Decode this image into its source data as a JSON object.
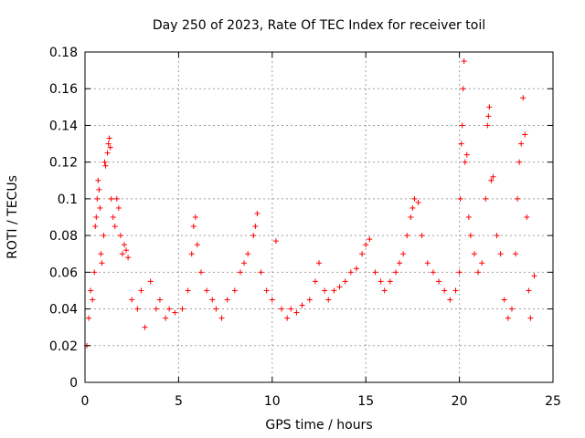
{
  "chart_data": {
    "type": "scatter",
    "title": "Day 250 of 2023, Rate Of TEC Index for receiver toil",
    "xlabel": "GPS time / hours",
    "ylabel": "ROTI / TECUs",
    "xlim": [
      0,
      25
    ],
    "ylim": [
      0,
      0.18
    ],
    "x_ticks": [
      0,
      5,
      10,
      15,
      20,
      25
    ],
    "x_tick_labels": [
      "0",
      "5",
      "10",
      "15",
      "20",
      "25"
    ],
    "y_ticks": [
      0,
      0.02,
      0.04,
      0.06,
      0.08,
      0.1,
      0.12,
      0.14,
      0.16,
      0.18
    ],
    "y_tick_labels": [
      "0",
      "0.02",
      "0.04",
      "0.06",
      "0.08",
      "0.1",
      "0.12",
      "0.14",
      "0.16",
      "0.18"
    ],
    "grid": true,
    "marker": "plus",
    "color": "#ff0000",
    "series": [
      {
        "points": [
          [
            0.1,
            0.02
          ],
          [
            0.2,
            0.035
          ],
          [
            0.3,
            0.05
          ],
          [
            0.4,
            0.045
          ],
          [
            0.5,
            0.06
          ],
          [
            0.55,
            0.085
          ],
          [
            0.6,
            0.09
          ],
          [
            0.65,
            0.1
          ],
          [
            0.7,
            0.11
          ],
          [
            0.75,
            0.105
          ],
          [
            0.8,
            0.095
          ],
          [
            0.85,
            0.07
          ],
          [
            0.9,
            0.065
          ],
          [
            1.0,
            0.08
          ],
          [
            1.05,
            0.12
          ],
          [
            1.1,
            0.118
          ],
          [
            1.2,
            0.125
          ],
          [
            1.25,
            0.13
          ],
          [
            1.3,
            0.133
          ],
          [
            1.35,
            0.128
          ],
          [
            1.4,
            0.1
          ],
          [
            1.5,
            0.09
          ],
          [
            1.6,
            0.085
          ],
          [
            1.7,
            0.1
          ],
          [
            1.8,
            0.095
          ],
          [
            1.9,
            0.08
          ],
          [
            2.0,
            0.07
          ],
          [
            2.1,
            0.075
          ],
          [
            2.2,
            0.072
          ],
          [
            2.3,
            0.068
          ],
          [
            2.5,
            0.045
          ],
          [
            2.8,
            0.04
          ],
          [
            3.0,
            0.05
          ],
          [
            3.2,
            0.03
          ],
          [
            3.5,
            0.055
          ],
          [
            3.8,
            0.04
          ],
          [
            4.0,
            0.045
          ],
          [
            4.3,
            0.035
          ],
          [
            4.5,
            0.04
          ],
          [
            4.8,
            0.038
          ],
          [
            5.2,
            0.04
          ],
          [
            5.5,
            0.05
          ],
          [
            5.7,
            0.07
          ],
          [
            5.8,
            0.085
          ],
          [
            5.9,
            0.09
          ],
          [
            6.0,
            0.075
          ],
          [
            6.2,
            0.06
          ],
          [
            6.5,
            0.05
          ],
          [
            6.8,
            0.045
          ],
          [
            7.0,
            0.04
          ],
          [
            7.3,
            0.035
          ],
          [
            7.6,
            0.045
          ],
          [
            8.0,
            0.05
          ],
          [
            8.3,
            0.06
          ],
          [
            8.5,
            0.065
          ],
          [
            8.7,
            0.07
          ],
          [
            9.0,
            0.08
          ],
          [
            9.1,
            0.085
          ],
          [
            9.2,
            0.092
          ],
          [
            9.4,
            0.06
          ],
          [
            9.7,
            0.05
          ],
          [
            10.0,
            0.045
          ],
          [
            10.2,
            0.077
          ],
          [
            10.5,
            0.04
          ],
          [
            10.8,
            0.035
          ],
          [
            11.0,
            0.04
          ],
          [
            11.3,
            0.038
          ],
          [
            11.6,
            0.042
          ],
          [
            12.0,
            0.045
          ],
          [
            12.3,
            0.055
          ],
          [
            12.5,
            0.065
          ],
          [
            12.8,
            0.05
          ],
          [
            13.0,
            0.045
          ],
          [
            13.3,
            0.05
          ],
          [
            13.6,
            0.052
          ],
          [
            13.9,
            0.055
          ],
          [
            14.2,
            0.06
          ],
          [
            14.5,
            0.062
          ],
          [
            14.8,
            0.07
          ],
          [
            15.0,
            0.075
          ],
          [
            15.2,
            0.078
          ],
          [
            15.5,
            0.06
          ],
          [
            15.8,
            0.055
          ],
          [
            16.0,
            0.05
          ],
          [
            16.3,
            0.055
          ],
          [
            16.6,
            0.06
          ],
          [
            16.8,
            0.065
          ],
          [
            17.0,
            0.07
          ],
          [
            17.2,
            0.08
          ],
          [
            17.4,
            0.09
          ],
          [
            17.5,
            0.095
          ],
          [
            17.6,
            0.1
          ],
          [
            17.8,
            0.098
          ],
          [
            18.0,
            0.08
          ],
          [
            18.3,
            0.065
          ],
          [
            18.6,
            0.06
          ],
          [
            18.9,
            0.055
          ],
          [
            19.2,
            0.05
          ],
          [
            19.5,
            0.045
          ],
          [
            19.8,
            0.05
          ],
          [
            20.0,
            0.06
          ],
          [
            20.05,
            0.1
          ],
          [
            20.1,
            0.13
          ],
          [
            20.15,
            0.14
          ],
          [
            20.2,
            0.16
          ],
          [
            20.25,
            0.175
          ],
          [
            20.3,
            0.12
          ],
          [
            20.4,
            0.124
          ],
          [
            20.5,
            0.09
          ],
          [
            20.6,
            0.08
          ],
          [
            20.8,
            0.07
          ],
          [
            21.0,
            0.06
          ],
          [
            21.2,
            0.065
          ],
          [
            21.4,
            0.1
          ],
          [
            21.5,
            0.14
          ],
          [
            21.55,
            0.145
          ],
          [
            21.6,
            0.15
          ],
          [
            21.7,
            0.11
          ],
          [
            21.8,
            0.112
          ],
          [
            22.0,
            0.08
          ],
          [
            22.2,
            0.07
          ],
          [
            22.4,
            0.045
          ],
          [
            22.6,
            0.035
          ],
          [
            22.8,
            0.04
          ],
          [
            23.0,
            0.07
          ],
          [
            23.1,
            0.1
          ],
          [
            23.2,
            0.12
          ],
          [
            23.3,
            0.13
          ],
          [
            23.4,
            0.155
          ],
          [
            23.5,
            0.135
          ],
          [
            23.6,
            0.09
          ],
          [
            23.7,
            0.05
          ],
          [
            23.8,
            0.035
          ],
          [
            24.0,
            0.058
          ]
        ]
      }
    ]
  }
}
